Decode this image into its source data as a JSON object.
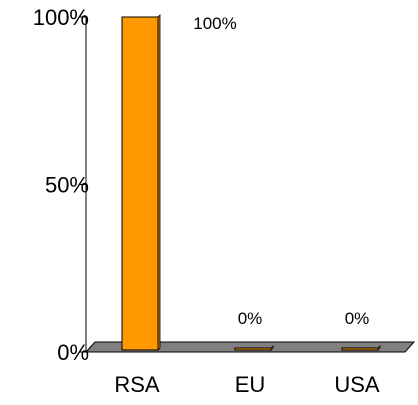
{
  "chart_data": {
    "type": "bar",
    "title": "",
    "xlabel": "",
    "ylabel": "",
    "categories": [
      "RSA",
      "EU",
      "USA"
    ],
    "values": [
      100,
      0,
      0
    ],
    "data_labels": [
      "100%",
      "0%",
      "0%"
    ],
    "y_ticks": [
      {
        "value": 0,
        "label": "0%"
      },
      {
        "value": 50,
        "label": "50%"
      },
      {
        "value": 100,
        "label": "100%"
      }
    ],
    "ylim": [
      0,
      100
    ],
    "grid": false,
    "legend": "none",
    "colors": {
      "bar_fill": "#ff9900",
      "bar_stroke": "#000000",
      "floor_fill": "#808080",
      "axis": "#000000"
    }
  }
}
